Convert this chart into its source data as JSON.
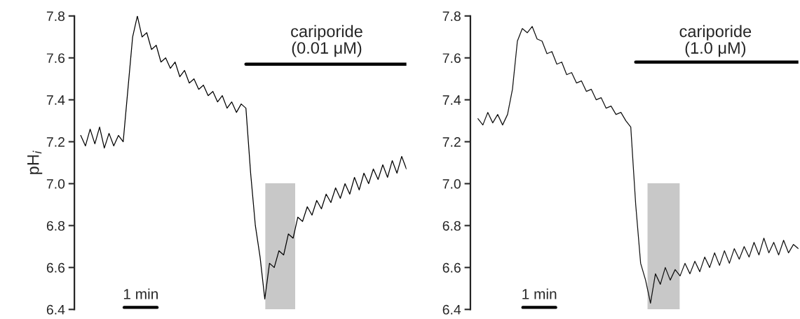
{
  "chart_data": [
    {
      "type": "line",
      "ylabel": "pH$_{i}$",
      "ylim": [
        6.4,
        7.8
      ],
      "yticks": [
        6.4,
        6.6,
        6.8,
        {
          "value": 7,
          "label": "7.0"
        },
        7.2,
        7.4,
        7.6,
        7.8
      ],
      "tick_labels": "y",
      "categories": [
        null,
        null,
        null,
        null,
        null,
        null,
        null,
        null,
        null,
        null,
        null,
        null,
        null,
        null,
        null,
        null,
        null,
        null,
        null,
        null,
        null,
        null,
        null,
        null,
        null,
        null,
        null,
        null,
        null,
        null,
        null,
        null,
        null,
        null,
        null,
        null,
        null,
        null,
        null,
        null,
        null,
        null,
        null,
        null,
        null,
        null,
        null,
        null,
        null,
        null,
        null,
        null,
        null,
        null,
        null,
        null,
        null,
        null,
        null,
        null,
        null,
        null,
        null,
        null,
        null,
        null,
        null,
        null,
        null,
        null
      ],
      "series": [
        {
          "color": "#000000",
          "values": [
            7.23,
            7.18,
            7.26,
            7.19,
            7.27,
            7.17,
            7.24,
            7.18,
            7.23,
            7.2,
            7.45,
            7.7,
            7.8,
            7.7,
            7.72,
            7.64,
            7.66,
            7.58,
            7.6,
            7.55,
            7.58,
            7.51,
            7.54,
            7.48,
            7.5,
            7.45,
            7.47,
            7.42,
            7.44,
            7.39,
            7.42,
            7.36,
            7.39,
            7.34,
            7.38,
            7.36,
            7.05,
            6.8,
            6.65,
            6.45,
            6.62,
            6.6,
            6.68,
            6.66,
            6.76,
            6.74,
            6.84,
            6.82,
            6.89,
            6.85,
            6.92,
            6.88,
            6.95,
            6.91,
            6.98,
            6.93,
            7.0,
            6.95,
            7.03,
            6.97,
            7.05,
            7.0,
            7.07,
            7.02,
            7.09,
            7.03,
            7.11,
            7.05,
            7.13,
            7.07
          ]
        },
        {
          "color": "#000000",
          "values": [
            null,
            null,
            null,
            null,
            null,
            null,
            null,
            null,
            null,
            null,
            null,
            null,
            null,
            null,
            null,
            null,
            null,
            null,
            null,
            null,
            null,
            null,
            null,
            null,
            null,
            null,
            null,
            null,
            null,
            null,
            null,
            null,
            null,
            null,
            null,
            7.57,
            7.57,
            7.57,
            7.57,
            7.57,
            7.57,
            7.57,
            7.57,
            7.57,
            7.57,
            7.57,
            7.57,
            7.57,
            7.57,
            7.57,
            7.57,
            7.57,
            7.57,
            7.57,
            7.57,
            7.57,
            7.57,
            7.57,
            7.57,
            7.57,
            7.57,
            7.57,
            7.57,
            7.57,
            7.57,
            7.57,
            7.57,
            7.57,
            7.57,
            7.57
          ]
        }
      ],
      "annotations": [
        "cariporide\n(0.01 μM)",
        "1 min"
      ]
    },
    {
      "type": "line",
      "ylim": [
        6.4,
        7.8
      ],
      "yticks": [
        6.4,
        6.6,
        6.8,
        {
          "value": 7,
          "label": "7.0"
        },
        7.2,
        7.4,
        7.6,
        7.8
      ],
      "tick_labels": "y",
      "categories": [
        null,
        null,
        null,
        null,
        null,
        null,
        null,
        null,
        null,
        null,
        null,
        null,
        null,
        null,
        null,
        null,
        null,
        null,
        null,
        null,
        null,
        null,
        null,
        null,
        null,
        null,
        null,
        null,
        null,
        null,
        null,
        null,
        null,
        null,
        null,
        null,
        null,
        null,
        null,
        null,
        null,
        null,
        null,
        null,
        null,
        null,
        null,
        null,
        null,
        null,
        null,
        null,
        null,
        null,
        null,
        null,
        null,
        null,
        null,
        null,
        null,
        null,
        null,
        null,
        null,
        null
      ],
      "series": [
        {
          "color": "#111111",
          "values": [
            7.31,
            7.28,
            7.34,
            7.29,
            7.33,
            7.28,
            7.33,
            7.45,
            7.68,
            7.74,
            7.72,
            7.75,
            7.69,
            7.68,
            7.62,
            7.63,
            7.57,
            7.58,
            7.52,
            7.53,
            7.48,
            7.49,
            7.44,
            7.45,
            7.4,
            7.41,
            7.36,
            7.37,
            7.33,
            7.34,
            7.3,
            7.27,
            6.9,
            6.62,
            6.54,
            6.43,
            6.57,
            6.52,
            6.6,
            6.54,
            6.59,
            6.56,
            6.62,
            6.57,
            6.63,
            6.58,
            6.65,
            6.6,
            6.67,
            6.61,
            6.68,
            6.62,
            6.69,
            6.64,
            6.7,
            6.65,
            6.72,
            6.66,
            6.74,
            6.67,
            6.72,
            6.66,
            6.73,
            6.67,
            6.71,
            6.69
          ]
        },
        {
          "color": "#000000",
          "values": [
            null,
            null,
            null,
            null,
            null,
            null,
            null,
            null,
            null,
            null,
            null,
            null,
            null,
            null,
            null,
            null,
            null,
            null,
            null,
            null,
            null,
            null,
            null,
            null,
            null,
            null,
            null,
            null,
            null,
            null,
            null,
            null,
            7.58,
            7.58,
            7.58,
            7.58,
            7.58,
            7.58,
            7.58,
            7.58,
            7.58,
            7.58,
            7.58,
            7.58,
            7.58,
            7.58,
            7.58,
            7.58,
            7.58,
            7.58,
            7.58,
            7.58,
            7.58,
            7.58,
            7.58,
            7.58,
            7.58,
            7.58,
            7.58,
            7.58,
            7.58,
            7.58,
            7.58,
            7.58,
            7.58,
            7.58
          ]
        }
      ],
      "annotations": [
        "cariporide\n(1.0 μM)",
        "1 min"
      ]
    }
  ]
}
